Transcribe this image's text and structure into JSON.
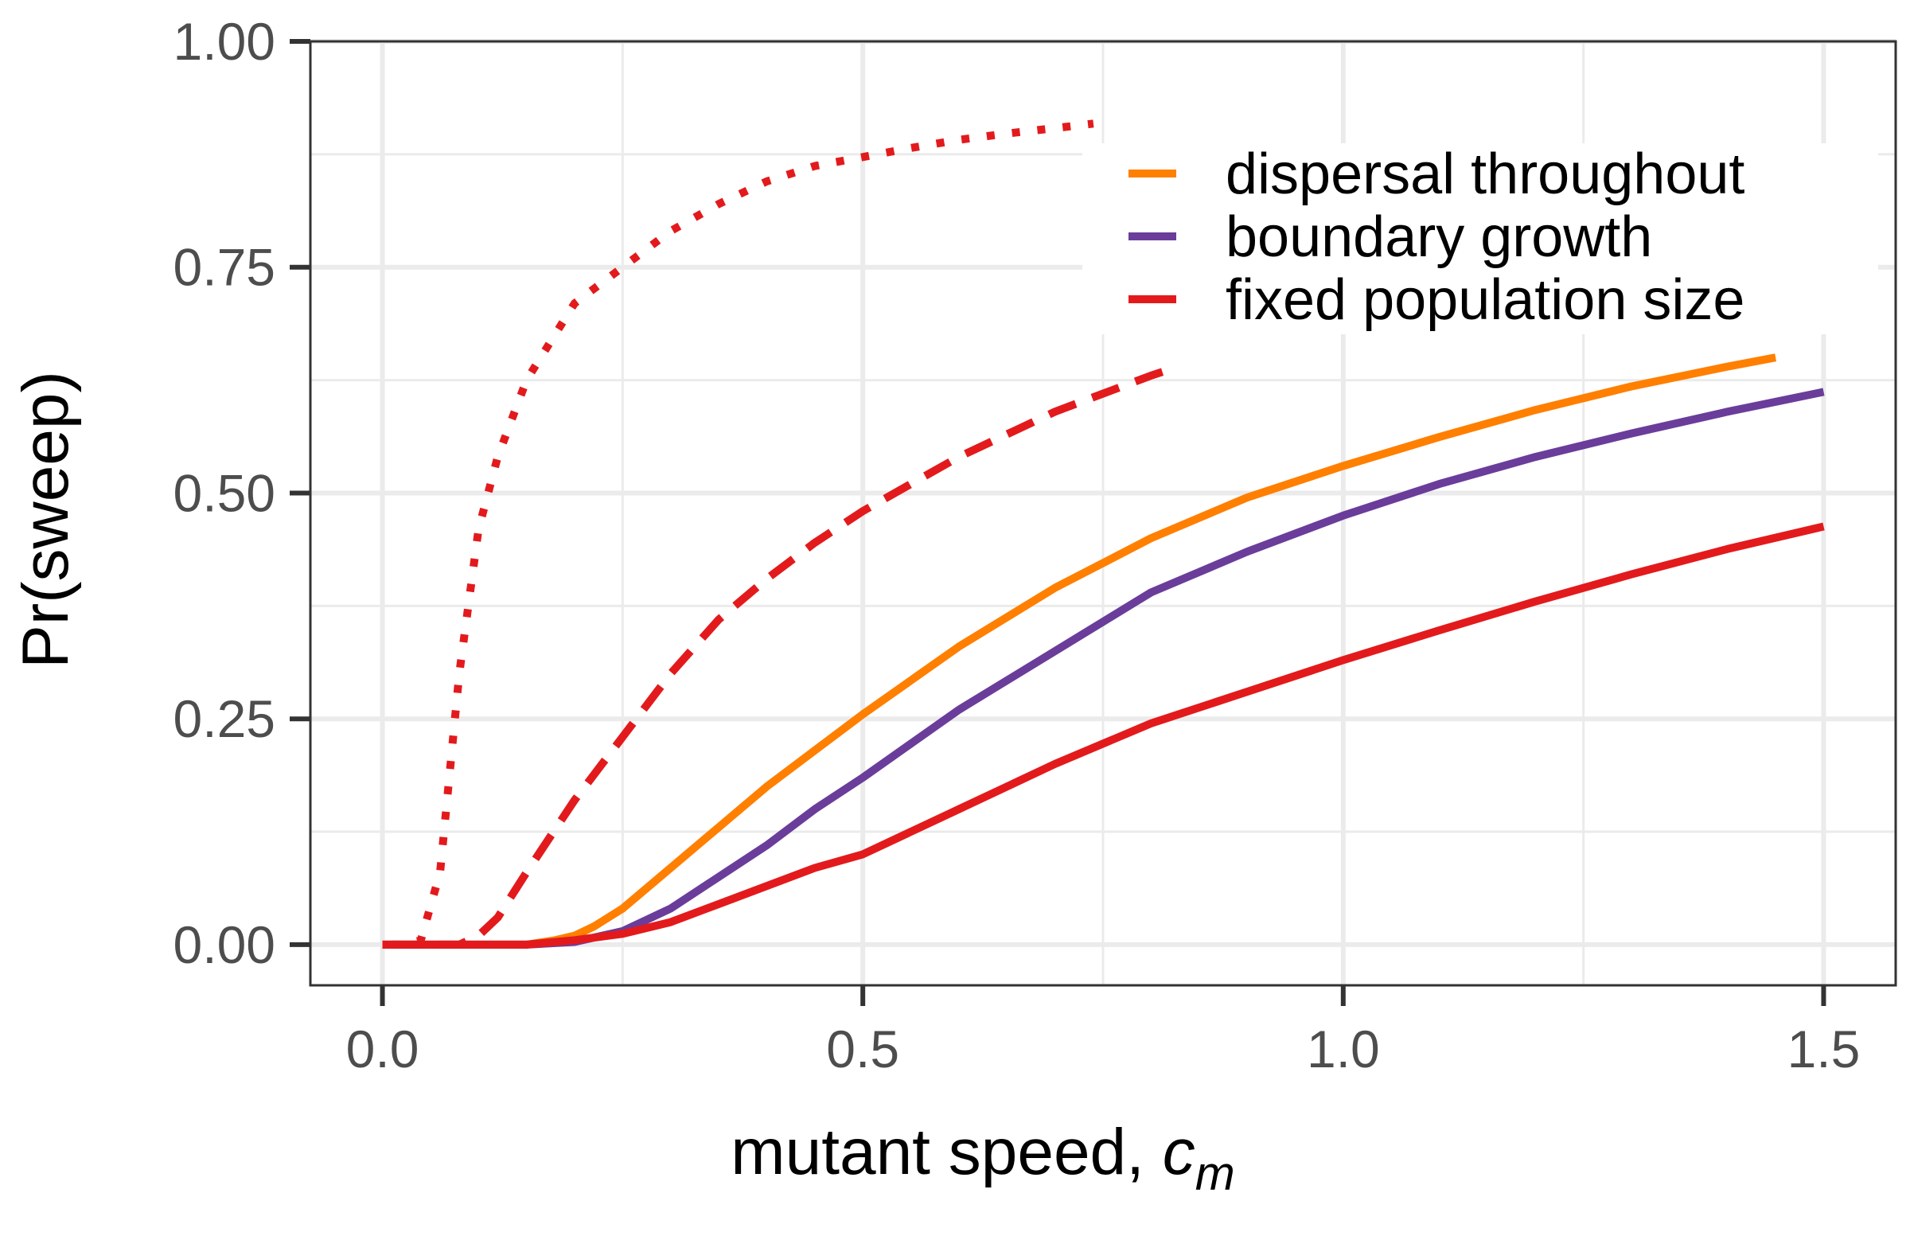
{
  "chart_data": {
    "type": "line",
    "title": "",
    "xlabel": "mutant speed, ",
    "xlabel_symbol": "c",
    "xlabel_subscript": "m",
    "ylabel": "Pr(sweep)",
    "xlim": [
      -0.075,
      1.575
    ],
    "ylim": [
      -0.045,
      1.0
    ],
    "x_ticks": [
      0.0,
      0.5,
      1.0,
      1.5
    ],
    "x_tick_labels": [
      "0.0",
      "0.5",
      "1.0",
      "1.5"
    ],
    "y_ticks": [
      0.0,
      0.25,
      0.5,
      0.75,
      1.0
    ],
    "y_tick_labels": [
      "0.00",
      "0.25",
      "0.50",
      "0.75",
      "1.00"
    ],
    "x_minor_grid": [
      0.25,
      0.75,
      1.25
    ],
    "y_minor_grid": [
      0.125,
      0.375,
      0.625,
      0.875
    ],
    "grid": true,
    "legend_position": "top-right",
    "legend": [
      {
        "label": "dispersal throughout",
        "color": "#FF7F00"
      },
      {
        "label": "boundary growth",
        "color": "#6A3D9A"
      },
      {
        "label": "fixed population size",
        "color": "#E31A1C"
      }
    ],
    "series": [
      {
        "name": "fixed population size (dotted)",
        "color": "#E31A1C",
        "dash": "dotted",
        "x": [
          0.01,
          0.02,
          0.04,
          0.06,
          0.08,
          0.1,
          0.12,
          0.15,
          0.2,
          0.25,
          0.3,
          0.35,
          0.4,
          0.45,
          0.5,
          0.55,
          0.6,
          0.65,
          0.7,
          0.74
        ],
        "values": [
          0.0,
          0.0,
          0.005,
          0.08,
          0.3,
          0.46,
          0.54,
          0.625,
          0.71,
          0.75,
          0.79,
          0.82,
          0.845,
          0.862,
          0.872,
          0.882,
          0.891,
          0.898,
          0.904,
          0.909
        ]
      },
      {
        "name": "fixed population size (dashed)",
        "color": "#E31A1C",
        "dash": "dashed",
        "x": [
          0.01,
          0.05,
          0.08,
          0.1,
          0.12,
          0.15,
          0.2,
          0.25,
          0.3,
          0.35,
          0.4,
          0.45,
          0.5,
          0.55,
          0.6,
          0.65,
          0.7,
          0.75,
          0.8,
          0.82
        ],
        "values": [
          0.0,
          0.0,
          0.0,
          0.01,
          0.03,
          0.08,
          0.16,
          0.23,
          0.3,
          0.36,
          0.405,
          0.445,
          0.48,
          0.51,
          0.54,
          0.565,
          0.59,
          0.61,
          0.63,
          0.637
        ]
      },
      {
        "name": "dispersal throughout",
        "color": "#FF7F00",
        "dash": "solid",
        "x": [
          0.0,
          0.15,
          0.18,
          0.2,
          0.22,
          0.25,
          0.3,
          0.35,
          0.4,
          0.45,
          0.5,
          0.6,
          0.7,
          0.8,
          0.9,
          1.0,
          1.1,
          1.2,
          1.3,
          1.4,
          1.45
        ],
        "values": [
          0.0,
          0.0,
          0.005,
          0.01,
          0.02,
          0.04,
          0.085,
          0.13,
          0.175,
          0.215,
          0.255,
          0.33,
          0.395,
          0.45,
          0.495,
          0.53,
          0.562,
          0.592,
          0.618,
          0.64,
          0.65
        ]
      },
      {
        "name": "boundary growth",
        "color": "#6A3D9A",
        "dash": "solid",
        "x": [
          0.0,
          0.15,
          0.2,
          0.25,
          0.3,
          0.35,
          0.4,
          0.45,
          0.5,
          0.6,
          0.7,
          0.8,
          0.9,
          1.0,
          1.1,
          1.2,
          1.3,
          1.4,
          1.5
        ],
        "values": [
          0.0,
          0.0,
          0.003,
          0.015,
          0.04,
          0.075,
          0.11,
          0.15,
          0.185,
          0.26,
          0.325,
          0.39,
          0.435,
          0.475,
          0.51,
          0.54,
          0.566,
          0.59,
          0.612
        ]
      },
      {
        "name": "fixed population size",
        "color": "#E31A1C",
        "dash": "solid",
        "x": [
          0.0,
          0.15,
          0.2,
          0.25,
          0.3,
          0.35,
          0.4,
          0.45,
          0.5,
          0.6,
          0.7,
          0.8,
          0.9,
          1.0,
          1.1,
          1.2,
          1.3,
          1.4,
          1.5
        ],
        "values": [
          0.0,
          0.0,
          0.005,
          0.012,
          0.025,
          0.045,
          0.065,
          0.085,
          0.1,
          0.15,
          0.2,
          0.245,
          0.28,
          0.315,
          0.348,
          0.38,
          0.41,
          0.438,
          0.463
        ]
      }
    ]
  }
}
